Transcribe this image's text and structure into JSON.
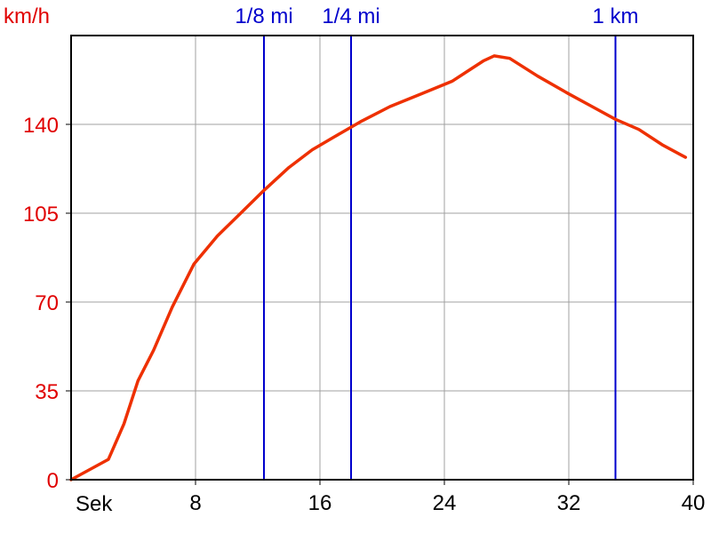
{
  "chart_data": {
    "type": "line",
    "title": "",
    "ylabel": "km/h",
    "xlabel": "Sek",
    "xlim": [
      0,
      40
    ],
    "ylim": [
      0,
      175
    ],
    "x_ticks": [
      8,
      16,
      24,
      32,
      40
    ],
    "y_ticks": [
      0,
      35,
      70,
      105,
      140
    ],
    "grid": true,
    "series": [
      {
        "color": "#ee3000",
        "x": [
          0,
          2.4,
          3.4,
          4.3,
          5.3,
          6.5,
          7.9,
          9.4,
          10.9,
          12.4,
          14.0,
          15.5,
          16.9,
          18.6,
          20.5,
          22.5,
          24.5,
          25.5,
          26.5,
          27.2,
          28.2,
          30.0,
          32.0,
          33.5,
          35.0,
          36.5,
          38.0,
          39.5
        ],
        "y": [
          0,
          8,
          22,
          39,
          51,
          68,
          85,
          96,
          105,
          114,
          123,
          130,
          135,
          141,
          147,
          152,
          157,
          161,
          165,
          167,
          166,
          159,
          152,
          147,
          142,
          138,
          132,
          127
        ]
      }
    ],
    "markers": [
      {
        "label": "1/8 mi",
        "x": 12.4,
        "color": "#0000cc"
      },
      {
        "label": "1/4 mi",
        "x": 18.0,
        "color": "#0000cc"
      },
      {
        "label": "1 km",
        "x": 35.0,
        "color": "#0000cc"
      }
    ],
    "colors": {
      "grid": "#a0a0a0",
      "axis": "#000000",
      "y_text": "#e00000",
      "marker_text": "#0000cc"
    }
  }
}
